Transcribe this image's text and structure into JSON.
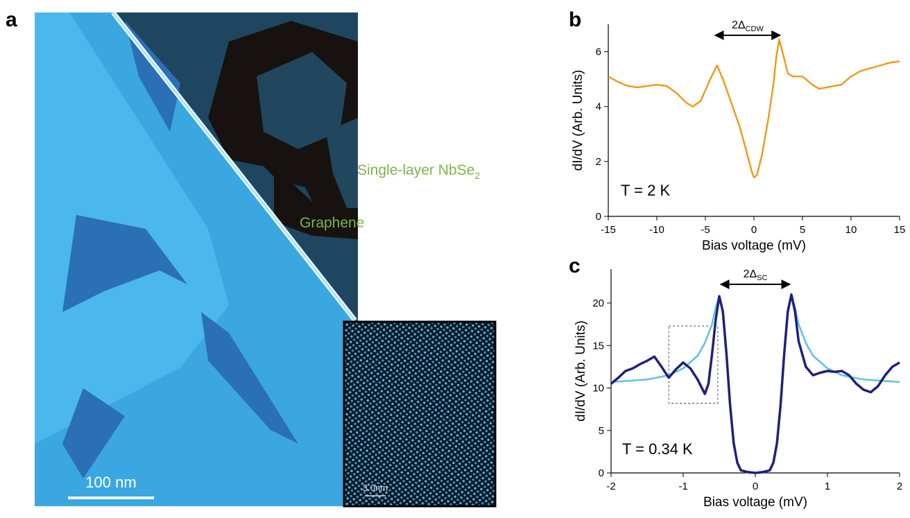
{
  "panels": [
    "a",
    "b",
    "c"
  ],
  "image": {
    "label_graphene": "Graphene",
    "label_nbse2": {
      "main": "Single-layer NbSe",
      "sub": "2"
    },
    "scale_bar": "100 nm",
    "inset_scale_bar": "3.0nm"
  },
  "chart_data": [
    {
      "type": "line",
      "xlabel": "Bias voltage (mV)",
      "ylabel": "dI/dV (Arb. Units)",
      "annotation": "T = 2 K",
      "gap_label": {
        "main": "2Δ",
        "sub": "CDW"
      },
      "gap_arrow": {
        "x": [
          -4,
          2.7
        ],
        "y": 6.6
      },
      "xlim": [
        -15,
        15
      ],
      "xticks": [
        -15,
        -10,
        -5,
        0,
        5,
        10,
        15
      ],
      "ylim": [
        0,
        7
      ],
      "yticks": [
        0,
        2,
        4,
        6
      ],
      "series": [
        {
          "color": "#f39a1e",
          "x": [
            -15,
            -14,
            -13,
            -12,
            -11,
            -10,
            -9,
            -8,
            -7,
            -6.3,
            -5.5,
            -4.5,
            -3.8,
            -3.2,
            -2.5,
            -1.5,
            -0.8,
            -0.2,
            0,
            0.3,
            0.8,
            1.5,
            2.0,
            2.3,
            2.6,
            3.0,
            3.5,
            4,
            5,
            6,
            6.7,
            7.5,
            9,
            10,
            11,
            12,
            13,
            14,
            15
          ],
          "values": [
            5.1,
            4.9,
            4.75,
            4.7,
            4.75,
            4.8,
            4.75,
            4.5,
            4.15,
            4.0,
            4.2,
            5.0,
            5.5,
            5.0,
            4.3,
            3.3,
            2.4,
            1.6,
            1.42,
            1.5,
            2.2,
            3.6,
            4.8,
            5.8,
            6.45,
            5.9,
            5.2,
            5.1,
            5.1,
            4.8,
            4.65,
            4.7,
            4.8,
            5.1,
            5.3,
            5.4,
            5.5,
            5.6,
            5.65
          ]
        }
      ]
    },
    {
      "type": "line",
      "xlabel": "Bias voltage (mV)",
      "ylabel": "dI/dV (Arb. Units)",
      "annotation": "T = 0.34 K",
      "gap_label": {
        "main": "2Δ",
        "sub": "SC"
      },
      "gap_arrow": {
        "x": [
          -0.48,
          0.48
        ],
        "y": 22.2
      },
      "highlight_box": {
        "x": [
          -1.2,
          -0.52
        ],
        "y": [
          8.2,
          17.3
        ]
      },
      "xlim": [
        -2,
        2
      ],
      "xticks": [
        -2,
        -1,
        0,
        1,
        2
      ],
      "ylim": [
        0,
        24
      ],
      "yticks": [
        0,
        5,
        10,
        15,
        20
      ],
      "series": [
        {
          "color": "#5bc3db",
          "x": [
            -2,
            -1.5,
            -1.2,
            -1,
            -0.8,
            -0.7,
            -0.6,
            -0.55,
            -0.5,
            -0.45,
            -0.4,
            -0.35,
            -0.3,
            -0.25,
            -0.2,
            -0.1,
            0,
            0.1,
            0.2,
            0.25,
            0.3,
            0.35,
            0.4,
            0.45,
            0.5,
            0.55,
            0.6,
            0.7,
            0.8,
            1,
            1.2,
            1.5,
            2
          ],
          "values": [
            10.7,
            11.0,
            11.5,
            12.3,
            13.8,
            15.3,
            17.5,
            19.5,
            20.8,
            19,
            14,
            8,
            3.5,
            1.2,
            0.3,
            0,
            0,
            0,
            0.3,
            1.2,
            3.5,
            8,
            14,
            19,
            20.8,
            19.5,
            17.5,
            15.3,
            13.8,
            12.3,
            11.5,
            11.0,
            10.7
          ]
        },
        {
          "color": "#1f1f7f",
          "x": [
            -2,
            -1.9,
            -1.8,
            -1.7,
            -1.6,
            -1.5,
            -1.4,
            -1.3,
            -1.2,
            -1.1,
            -1.0,
            -0.9,
            -0.8,
            -0.7,
            -0.65,
            -0.6,
            -0.55,
            -0.5,
            -0.45,
            -0.4,
            -0.35,
            -0.3,
            -0.25,
            -0.2,
            -0.1,
            0,
            0.1,
            0.2,
            0.25,
            0.3,
            0.35,
            0.4,
            0.45,
            0.5,
            0.55,
            0.6,
            0.7,
            0.8,
            0.9,
            1.0,
            1.1,
            1.2,
            1.3,
            1.4,
            1.5,
            1.6,
            1.7,
            1.8,
            1.9,
            2.0
          ],
          "values": [
            10.5,
            11.2,
            12,
            12.3,
            12.8,
            13.2,
            13.7,
            12.5,
            11.2,
            12.2,
            13.0,
            12.3,
            11,
            9.3,
            10.5,
            14,
            18,
            20.8,
            19,
            14,
            8,
            3.5,
            1.2,
            0.3,
            0.1,
            0,
            0.1,
            0.3,
            1.2,
            3.5,
            8,
            14,
            19,
            21,
            19,
            15.5,
            12.5,
            11.5,
            11.8,
            12,
            11.9,
            12,
            11.5,
            10.5,
            9.8,
            9.5,
            10.2,
            11.5,
            12.5,
            13
          ]
        }
      ]
    }
  ]
}
